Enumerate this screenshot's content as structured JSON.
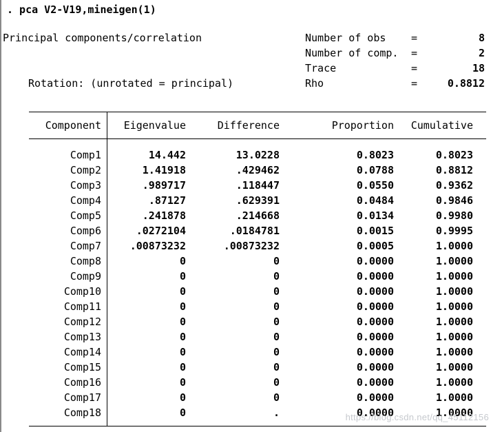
{
  "command": ". pca V2-V19,mineigen(1)",
  "summary": {
    "title": "Principal components/correlation",
    "rotation": "Rotation: (unrotated = principal)",
    "stats": [
      {
        "label": "Number of obs",
        "eq": "=",
        "value": "8"
      },
      {
        "label": "Number of comp.",
        "eq": "=",
        "value": "2"
      },
      {
        "label": "Trace",
        "eq": "=",
        "value": "18"
      },
      {
        "label": "Rho",
        "eq": "=",
        "value": "0.8812"
      }
    ]
  },
  "table": {
    "headers": [
      "Component",
      "Eigenvalue",
      "Difference",
      "Proportion",
      "Cumulative"
    ],
    "rows": [
      [
        "Comp1",
        "14.442",
        "13.0228",
        "0.8023",
        "0.8023"
      ],
      [
        "Comp2",
        "1.41918",
        ".429462",
        "0.0788",
        "0.8812"
      ],
      [
        "Comp3",
        ".989717",
        ".118447",
        "0.0550",
        "0.9362"
      ],
      [
        "Comp4",
        ".87127",
        ".629391",
        "0.0484",
        "0.9846"
      ],
      [
        "Comp5",
        ".241878",
        ".214668",
        "0.0134",
        "0.9980"
      ],
      [
        "Comp6",
        ".0272104",
        ".0184781",
        "0.0015",
        "0.9995"
      ],
      [
        "Comp7",
        ".00873232",
        ".00873232",
        "0.0005",
        "1.0000"
      ],
      [
        "Comp8",
        "0",
        "0",
        "0.0000",
        "1.0000"
      ],
      [
        "Comp9",
        "0",
        "0",
        "0.0000",
        "1.0000"
      ],
      [
        "Comp10",
        "0",
        "0",
        "0.0000",
        "1.0000"
      ],
      [
        "Comp11",
        "0",
        "0",
        "0.0000",
        "1.0000"
      ],
      [
        "Comp12",
        "0",
        "0",
        "0.0000",
        "1.0000"
      ],
      [
        "Comp13",
        "0",
        "0",
        "0.0000",
        "1.0000"
      ],
      [
        "Comp14",
        "0",
        "0",
        "0.0000",
        "1.0000"
      ],
      [
        "Comp15",
        "0",
        "0",
        "0.0000",
        "1.0000"
      ],
      [
        "Comp16",
        "0",
        "0",
        "0.0000",
        "1.0000"
      ],
      [
        "Comp17",
        "0",
        "0",
        "0.0000",
        "1.0000"
      ],
      [
        "Comp18",
        "0",
        ".",
        "0.0000",
        "1.0000"
      ]
    ]
  },
  "watermark": "https://blog.csdn.net/qq_45112156"
}
